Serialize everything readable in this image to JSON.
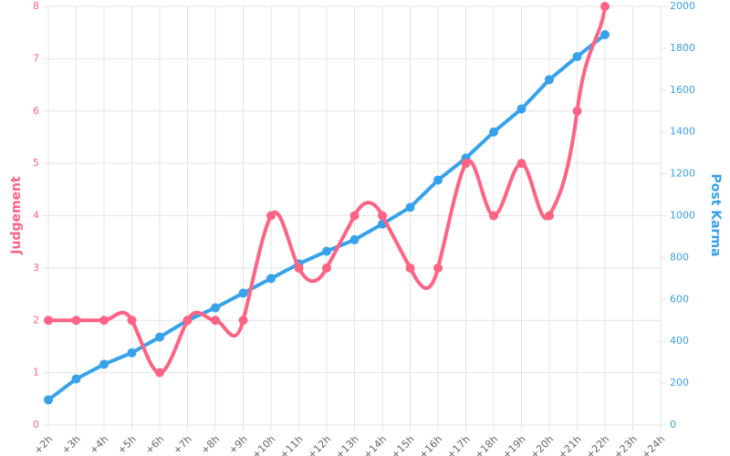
{
  "chart_data": {
    "type": "line",
    "categories": [
      "+2h",
      "+3h",
      "+4h",
      "+5h",
      "+6h",
      "+7h",
      "+8h",
      "+9h",
      "+10h",
      "+11h",
      "+12h",
      "+13h",
      "+14h",
      "+15h",
      "+16h",
      "+17h",
      "+18h",
      "+19h",
      "+20h",
      "+21h",
      "+22h",
      "+23h",
      "+24h"
    ],
    "series": [
      {
        "name": "Judgement",
        "color": "#ff6384",
        "axis": "y",
        "smooth": true,
        "values": [
          2,
          2,
          2,
          2,
          1,
          2,
          2,
          2,
          4,
          3,
          3,
          4,
          4,
          3,
          3,
          5,
          4,
          5,
          4,
          6,
          8,
          null,
          null
        ]
      },
      {
        "name": "Post Karma",
        "color": "#36a2eb",
        "axis": "y2",
        "smooth": false,
        "values": [
          120,
          220,
          290,
          345,
          420,
          500,
          560,
          630,
          700,
          770,
          830,
          885,
          960,
          1040,
          1170,
          1275,
          1400,
          1510,
          1650,
          1760,
          1865,
          null,
          null
        ]
      }
    ],
    "ylabel": "Judgement",
    "y2label": "Post Karma",
    "ylim": [
      0,
      8
    ],
    "yticks": [
      0,
      1,
      2,
      3,
      4,
      5,
      6,
      7,
      8
    ],
    "y2lim": [
      0,
      2000
    ],
    "y2ticks": [
      0,
      200,
      400,
      600,
      800,
      1000,
      1200,
      1400,
      1600,
      1800,
      2000
    ],
    "grid": true
  }
}
